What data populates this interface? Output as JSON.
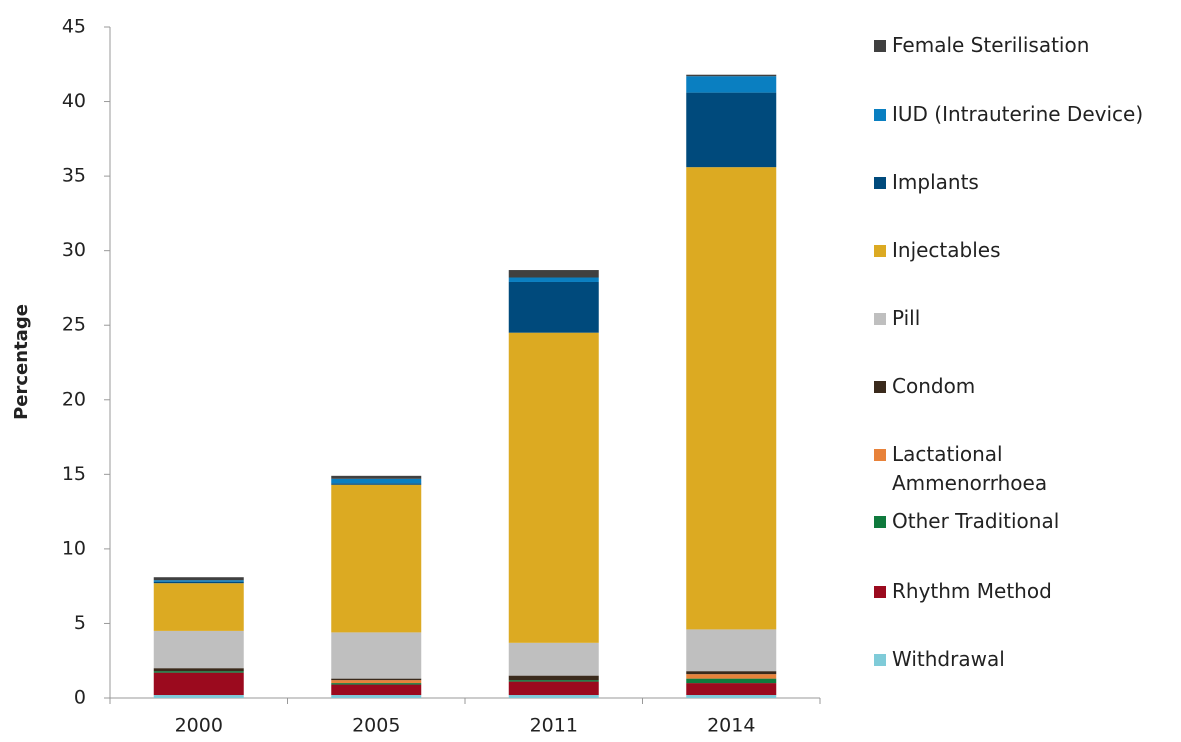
{
  "chart_data": {
    "type": "stacked_bar",
    "y_label": "Percentage",
    "categories": [
      "2000",
      "2005",
      "2011",
      "2014"
    ],
    "ylim": [
      0,
      45
    ],
    "yticks": [
      0,
      5,
      10,
      15,
      20,
      25,
      30,
      35,
      40,
      45
    ],
    "series": [
      {
        "name": "Withdrawal",
        "color": "#7fcbd8",
        "values": [
          0.2,
          0.2,
          0.2,
          0.2
        ]
      },
      {
        "name": "Rhythm Method",
        "color": "#9b0a1e",
        "values": [
          1.5,
          0.7,
          0.9,
          0.8
        ]
      },
      {
        "name": "Other Traditional",
        "color": "#0f7a3d",
        "values": [
          0.1,
          0.1,
          0.1,
          0.3
        ]
      },
      {
        "name": "Lactational Ammenorrhoea",
        "color": "#e8823a",
        "values": [
          0,
          0.2,
          0,
          0.3
        ]
      },
      {
        "name": "Condom",
        "color": "#3a2a1c",
        "values": [
          0.2,
          0.1,
          0.3,
          0.2
        ]
      },
      {
        "name": "Pill",
        "color": "#bfbfbf",
        "values": [
          2.5,
          3.1,
          2.2,
          2.8
        ]
      },
      {
        "name": "Injectables",
        "color": "#dcaa22",
        "values": [
          3.2,
          9.9,
          20.8,
          31.0
        ]
      },
      {
        "name": "Implants",
        "color": "#004a7c",
        "values": [
          0.1,
          0.1,
          3.4,
          5.0
        ]
      },
      {
        "name": "IUD (Intrauterine Device)",
        "color": "#0a7fc1",
        "values": [
          0.1,
          0.3,
          0.3,
          1.1
        ]
      },
      {
        "name": "Female Sterilisation",
        "color": "#404040",
        "values": [
          0.2,
          0.2,
          0.5,
          0.1
        ]
      }
    ]
  }
}
